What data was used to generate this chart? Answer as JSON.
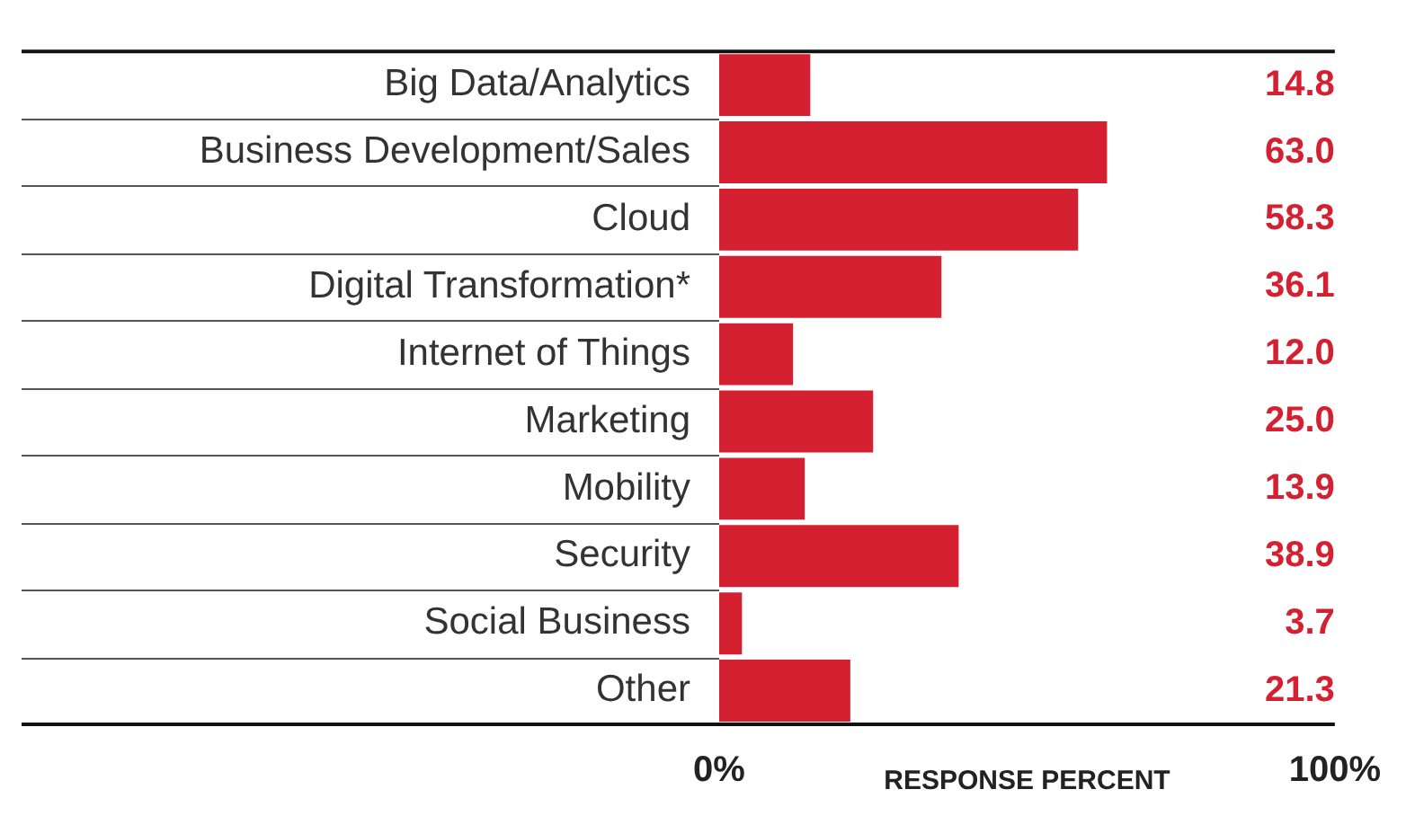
{
  "chart_data": {
    "type": "bar",
    "orientation": "horizontal",
    "categories": [
      "Big Data/Analytics",
      "Business Development/Sales",
      "Cloud",
      "Digital Transformation*",
      "Internet of Things",
      "Marketing",
      "Mobility",
      "Security",
      "Social Business",
      "Other"
    ],
    "values": [
      14.8,
      63.0,
      58.3,
      36.1,
      12.0,
      25.0,
      13.9,
      38.9,
      3.7,
      21.3
    ],
    "value_labels": [
      "14.8",
      "63.0",
      "58.3",
      "36.1",
      "12.0",
      "25.0",
      "13.9",
      "38.9",
      "3.7",
      "21.3"
    ],
    "color": "#d42030",
    "xlabel": "RESPONSE PERCENT",
    "xlim": [
      0,
      100
    ],
    "xticks": [
      {
        "value": 0,
        "label": "0%"
      },
      {
        "value": 100,
        "label": "100%"
      }
    ],
    "grid": "y"
  }
}
